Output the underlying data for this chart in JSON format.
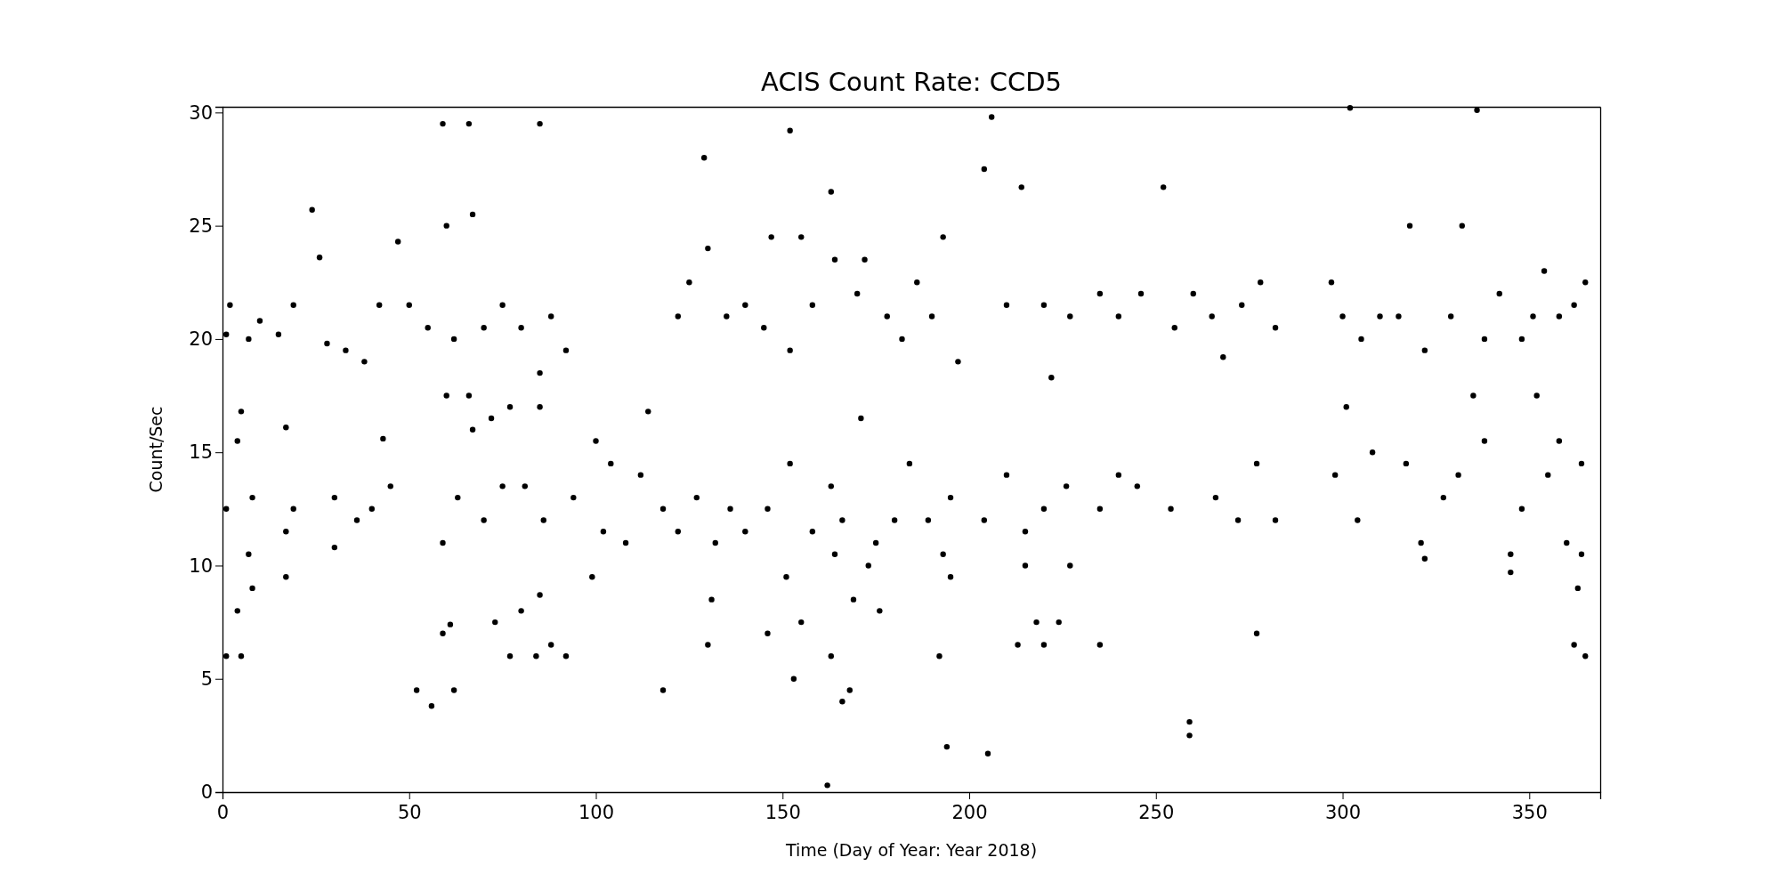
{
  "chart_data": {
    "type": "scatter",
    "title": "ACIS Count Rate: CCD5",
    "xlabel": "Time (Day of Year: Year 2018)",
    "ylabel": "Count/Sec",
    "color": "#000000",
    "marker": "circle",
    "xlim": [
      0,
      369
    ],
    "ylim": [
      0,
      30.25
    ],
    "xticks": [
      0,
      50,
      100,
      150,
      200,
      250,
      300,
      350
    ],
    "yticks": [
      0,
      5,
      10,
      15,
      20,
      25,
      30
    ],
    "x": [
      1,
      2,
      7,
      10,
      15,
      19,
      24,
      26,
      28,
      33,
      38,
      42,
      47,
      50,
      55,
      59,
      60,
      62,
      66,
      67,
      70,
      75,
      80,
      85,
      85,
      88,
      92,
      122,
      125,
      129,
      130,
      135,
      140,
      145,
      147,
      152,
      152,
      155,
      158,
      163,
      164,
      170,
      172,
      178,
      182,
      186,
      190,
      193,
      197,
      204,
      206,
      210,
      214,
      220,
      222,
      227,
      235,
      240,
      246,
      252,
      255,
      260,
      265,
      268,
      273,
      278,
      282,
      297,
      300,
      302,
      305,
      310,
      315,
      318,
      322,
      329,
      332,
      336,
      338,
      342,
      348,
      351,
      354,
      358,
      362,
      365,
      1,
      4,
      5,
      8,
      17,
      19,
      17,
      30,
      30,
      36,
      40,
      43,
      45,
      59,
      60,
      63,
      66,
      67,
      70,
      72,
      75,
      77,
      81,
      85,
      86,
      94,
      100,
      102,
      104,
      108,
      112,
      114,
      118,
      122,
      127,
      132,
      136,
      140,
      146,
      152,
      158,
      163,
      166,
      171,
      175,
      180,
      184,
      189,
      195,
      204,
      210,
      215,
      220,
      226,
      235,
      240,
      245,
      254,
      266,
      272,
      277,
      282,
      298,
      301,
      304,
      308,
      317,
      321,
      322,
      327,
      331,
      335,
      338,
      345,
      348,
      352,
      355,
      358,
      360,
      364,
      1,
      4,
      5,
      7,
      8,
      17,
      52,
      56,
      59,
      61,
      62,
      73,
      77,
      80,
      84,
      85,
      88,
      92,
      99,
      118,
      131,
      130,
      146,
      151,
      153,
      155,
      162,
      163,
      164,
      166,
      169,
      168,
      173,
      176,
      192,
      194,
      193,
      195,
      205,
      213,
      215,
      218,
      220,
      224,
      227,
      235,
      259,
      259,
      277,
      345,
      362,
      363,
      364,
      365
    ],
    "values": [
      20.2,
      21.5,
      20.0,
      20.8,
      20.2,
      21.5,
      25.7,
      23.6,
      19.8,
      19.5,
      19.0,
      21.5,
      24.3,
      21.5,
      20.5,
      29.5,
      25.0,
      20.0,
      29.5,
      25.5,
      20.5,
      21.5,
      20.5,
      29.5,
      18.5,
      21.0,
      19.5,
      21.0,
      22.5,
      28.0,
      24.0,
      21.0,
      21.5,
      20.5,
      24.5,
      29.2,
      19.5,
      24.5,
      21.5,
      26.5,
      23.5,
      22.0,
      23.5,
      21.0,
      20.0,
      22.5,
      21.0,
      24.5,
      19.0,
      27.5,
      29.8,
      21.5,
      26.7,
      21.5,
      18.3,
      21.0,
      22.0,
      21.0,
      22.0,
      26.7,
      20.5,
      22.0,
      21.0,
      19.2,
      21.5,
      22.5,
      20.5,
      22.5,
      21.0,
      30.2,
      20.0,
      21.0,
      21.0,
      25.0,
      19.5,
      21.0,
      25.0,
      30.1,
      20.0,
      22.0,
      20.0,
      21.0,
      23.0,
      21.0,
      21.5,
      22.5,
      12.5,
      15.5,
      16.8,
      13.0,
      11.5,
      12.5,
      16.1,
      13.0,
      10.8,
      12.0,
      12.5,
      15.6,
      13.5,
      11.0,
      17.5,
      13.0,
      17.5,
      16.0,
      12.0,
      16.5,
      13.5,
      17.0,
      13.5,
      17.0,
      12.0,
      13.0,
      15.5,
      11.5,
      14.5,
      11.0,
      14.0,
      16.8,
      12.5,
      11.5,
      13.0,
      11.0,
      12.5,
      11.5,
      12.5,
      14.5,
      11.5,
      13.5,
      12.0,
      16.5,
      11.0,
      12.0,
      14.5,
      12.0,
      13.0,
      12.0,
      14.0,
      11.5,
      12.5,
      13.5,
      12.5,
      14.0,
      13.5,
      12.5,
      13.0,
      12.0,
      14.5,
      12.0,
      14.0,
      17.0,
      12.0,
      15.0,
      14.5,
      11.0,
      10.3,
      13.0,
      14.0,
      17.5,
      15.5,
      10.5,
      12.5,
      17.5,
      14.0,
      15.5,
      11.0,
      14.5,
      6.0,
      8.0,
      6.0,
      10.5,
      9.0,
      9.5,
      4.5,
      3.8,
      7.0,
      7.4,
      4.5,
      7.5,
      6.0,
      8.0,
      6.0,
      8.7,
      6.5,
      6.0,
      9.5,
      4.5,
      8.5,
      6.5,
      7.0,
      9.5,
      5.0,
      7.5,
      0.3,
      6.0,
      10.5,
      4.0,
      8.5,
      4.5,
      10.0,
      8.0,
      6.0,
      2.0,
      10.5,
      9.5,
      1.7,
      6.5,
      10.0,
      7.5,
      6.5,
      7.5,
      10.0,
      6.5,
      2.5,
      3.1,
      7.0,
      9.7,
      6.5,
      9.0,
      10.5,
      6.0
    ]
  }
}
